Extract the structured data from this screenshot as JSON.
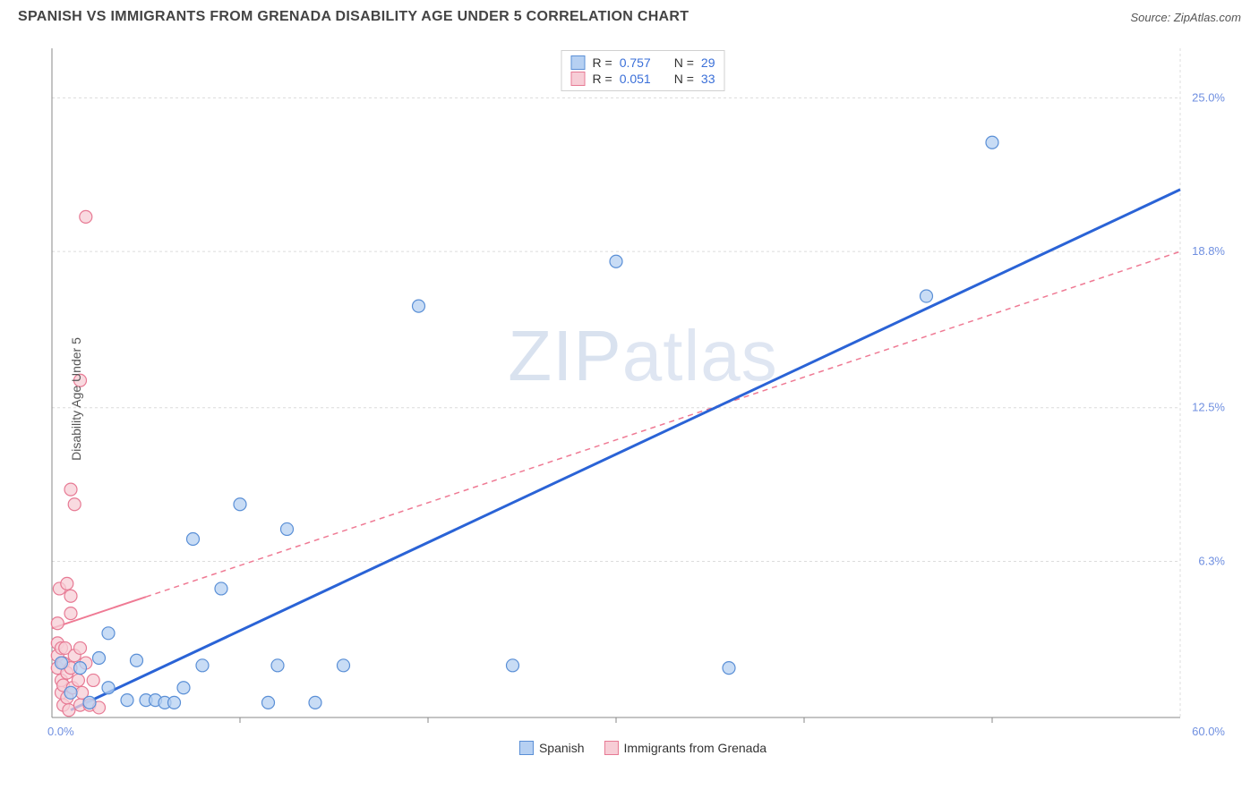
{
  "title": "SPANISH VS IMMIGRANTS FROM GRENADA DISABILITY AGE UNDER 5 CORRELATION CHART",
  "source_prefix": "Source: ",
  "source_name": "ZipAtlas.com",
  "ylabel": "Disability Age Under 5",
  "watermark_a": "ZIP",
  "watermark_b": "atlas",
  "chart": {
    "type": "scatter",
    "background_color": "#ffffff",
    "grid_color": "#dcdcdc",
    "axis_color": "#888888",
    "tick_color": "#666666",
    "tick_fontsize": 13,
    "ytick_label_color": "#6f8fe0",
    "xlim": [
      0,
      60
    ],
    "ylim": [
      0,
      27
    ],
    "xtick_step": 10,
    "yticks": [
      6.3,
      12.5,
      18.8,
      25.0
    ],
    "x_origin_label": "0.0%",
    "x_max_label": "60.0%",
    "ytick_suffix": "%",
    "marker_radius": 7,
    "marker_stroke_width": 1.2,
    "series": [
      {
        "name": "Spanish",
        "marker_fill": "#b6d0f2",
        "marker_stroke": "#5a8fd6",
        "swatch_fill": "#b6d0f2",
        "swatch_stroke": "#5a8fd6",
        "R": "0.757",
        "N": "29",
        "trend": {
          "x1": 1,
          "y1": 0.3,
          "x2": 60,
          "y2": 21.3,
          "color": "#2a63d6",
          "width": 3,
          "dash": ""
        },
        "points": [
          [
            0.5,
            2.2
          ],
          [
            1.0,
            1.0
          ],
          [
            1.5,
            2.0
          ],
          [
            2.0,
            0.6
          ],
          [
            2.5,
            2.4
          ],
          [
            3.0,
            3.4
          ],
          [
            3.0,
            1.2
          ],
          [
            4.0,
            0.7
          ],
          [
            4.5,
            2.3
          ],
          [
            5.0,
            0.7
          ],
          [
            5.5,
            0.7
          ],
          [
            6.0,
            0.6
          ],
          [
            6.5,
            0.6
          ],
          [
            7.0,
            1.2
          ],
          [
            7.5,
            7.2
          ],
          [
            8.0,
            2.1
          ],
          [
            9.0,
            5.2
          ],
          [
            10.0,
            8.6
          ],
          [
            11.5,
            0.6
          ],
          [
            12.0,
            2.1
          ],
          [
            12.5,
            7.6
          ],
          [
            14.0,
            0.6
          ],
          [
            15.5,
            2.1
          ],
          [
            19.5,
            16.6
          ],
          [
            24.5,
            2.1
          ],
          [
            30.0,
            18.4
          ],
          [
            36.0,
            2.0
          ],
          [
            46.5,
            17.0
          ],
          [
            50.0,
            23.2
          ]
        ]
      },
      {
        "name": "Immigrants from Grenada",
        "marker_fill": "#f7cdd6",
        "marker_stroke": "#e77a94",
        "swatch_fill": "#f7cdd6",
        "swatch_stroke": "#e77a94",
        "R": "0.051",
        "N": "33",
        "trend": {
          "x1": 0,
          "y1": 3.6,
          "x2": 60,
          "y2": 18.8,
          "color": "#ef7a94",
          "width": 1.5,
          "dash": "6,5",
          "solid_until_x": 5
        },
        "points": [
          [
            0.3,
            2.0
          ],
          [
            0.3,
            2.5
          ],
          [
            0.3,
            3.0
          ],
          [
            0.3,
            3.8
          ],
          [
            0.4,
            5.2
          ],
          [
            0.5,
            1.0
          ],
          [
            0.5,
            1.5
          ],
          [
            0.5,
            2.8
          ],
          [
            0.6,
            0.5
          ],
          [
            0.6,
            1.3
          ],
          [
            0.6,
            2.2
          ],
          [
            0.7,
            2.8
          ],
          [
            0.8,
            0.8
          ],
          [
            0.8,
            1.8
          ],
          [
            0.8,
            5.4
          ],
          [
            0.9,
            0.3
          ],
          [
            1.0,
            2.0
          ],
          [
            1.0,
            4.2
          ],
          [
            1.0,
            4.9
          ],
          [
            1.0,
            9.2
          ],
          [
            1.1,
            1.2
          ],
          [
            1.2,
            2.5
          ],
          [
            1.2,
            8.6
          ],
          [
            1.4,
            1.5
          ],
          [
            1.5,
            0.5
          ],
          [
            1.5,
            2.8
          ],
          [
            1.5,
            13.6
          ],
          [
            1.6,
            1.0
          ],
          [
            1.8,
            2.2
          ],
          [
            1.8,
            20.2
          ],
          [
            2.0,
            0.5
          ],
          [
            2.2,
            1.5
          ],
          [
            2.5,
            0.4
          ]
        ]
      }
    ],
    "legend_top_labels": {
      "R": "R =",
      "N": "N ="
    },
    "legend_bottom_labels": [
      "Spanish",
      "Immigrants from Grenada"
    ]
  }
}
